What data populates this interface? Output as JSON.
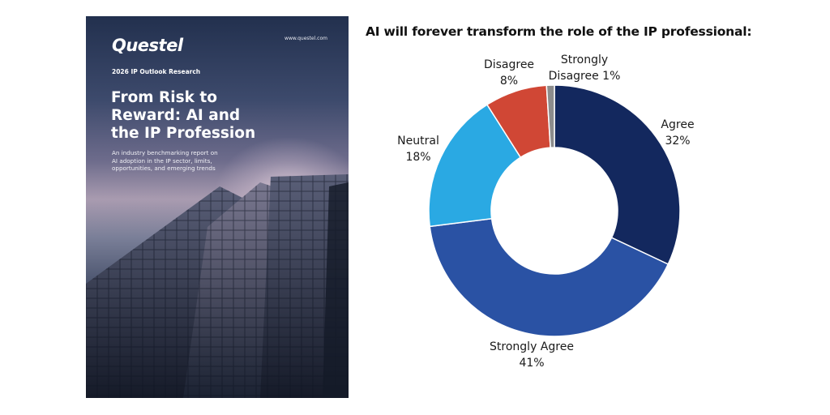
{
  "cover": {
    "logo": "Questel",
    "website": "www.questel.com",
    "eyebrow": "2026 IP Outlook Research",
    "title_lines": [
      "From Risk to",
      "Reward: AI and",
      "the IP Profession"
    ],
    "subtitle_lines": [
      "An industry benchmarking report on",
      "AI adoption in the IP sector, limits,",
      "opportunities, and emerging trends"
    ]
  },
  "chart_data": {
    "type": "pie",
    "style": "donut",
    "title": "AI will forever transform the role of the IP professional:",
    "categories": [
      "Agree",
      "Strongly Agree",
      "Neutral",
      "Disagree",
      "Strongly Disagree"
    ],
    "values": [
      32,
      41,
      18,
      8,
      1
    ],
    "unit": "%",
    "data_labels": [
      [
        "Agree",
        "32%"
      ],
      [
        "Strongly Agree",
        "41%"
      ],
      [
        "Neutral",
        "18%"
      ],
      [
        "Disagree",
        "8%"
      ],
      [
        "Strongly",
        "Disagree 1%"
      ]
    ],
    "colors": [
      "#13285e",
      "#2a52a4",
      "#2aa9e3",
      "#d04735",
      "#8c8c8c"
    ],
    "legend": "none"
  }
}
